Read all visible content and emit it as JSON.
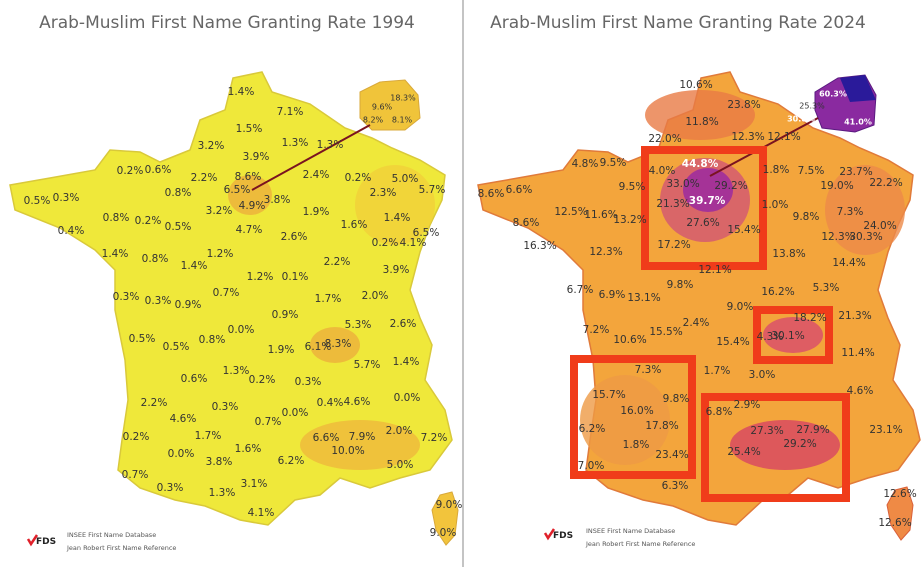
{
  "panels": [
    {
      "title": "Arab-Muslim First Name Granting Rate 1994",
      "labels": [
        "1.4%",
        "7.1%",
        "18.3%",
        "9.6%",
        "8.2%",
        "8.1%",
        "1.5%",
        "3.2%",
        "1.3%",
        "1.3%",
        "3.9%",
        "0.2%",
        "0.6%",
        "2.2%",
        "8.6%",
        "2.4%",
        "0.2%",
        "5.0%",
        "0.8%",
        "6.5%",
        "2.3%",
        "5.7%",
        "0.5%",
        "0.3%",
        "4.9%",
        "3.8%",
        "3.2%",
        "1.9%",
        "0.8%",
        "0.2%",
        "0.5%",
        "1.4%",
        "0.4%",
        "4.7%",
        "2.6%",
        "1.6%",
        "6.5%",
        "0.2%",
        "4.1%",
        "1.4%",
        "0.8%",
        "1.2%",
        "2.2%",
        "1.4%",
        "1.2%",
        "0.1%",
        "3.9%",
        "0.3%",
        "0.3%",
        "0.9%",
        "0.7%",
        "1.7%",
        "2.0%",
        "0.0%",
        "0.9%",
        "5.3%",
        "2.6%",
        "0.5%",
        "0.5%",
        "0.8%",
        "1.9%",
        "6.1%",
        "8.3%",
        "5.7%",
        "1.4%",
        "1.3%",
        "0.6%",
        "0.2%",
        "0.3%",
        "2.2%",
        "0.3%",
        "0.4%",
        "4.6%",
        "0.0%",
        "4.6%",
        "0.7%",
        "0.0%",
        "0.2%",
        "1.7%",
        "1.6%",
        "6.6%",
        "7.9%",
        "2.0%",
        "7.2%",
        "0.0%",
        "10.0%",
        "6.2%",
        "3.8%",
        "5.0%",
        "0.7%",
        "0.3%",
        "1.3%",
        "3.1%",
        "4.1%",
        "9.0%",
        "9.0%"
      ],
      "logo": "FDS",
      "source": [
        "INSEE First Name Database",
        "Jean Robert First Name Reference"
      ]
    },
    {
      "title": "Arab-Muslim First Name Granting Rate 2024",
      "labels": [
        "10.6%",
        "23.8%",
        "60.3%",
        "25.3%",
        "30.8%",
        "41.0%",
        "11.8%",
        "12.3%",
        "12.1%",
        "22.0%",
        "4.8%",
        "9.5%",
        "44.8%",
        "4.0%",
        "1.8%",
        "7.5%",
        "23.7%",
        "33.0%",
        "29.2%",
        "9.5%",
        "19.0%",
        "22.2%",
        "8.6%",
        "6.6%",
        "39.7%",
        "21.3%",
        "1.0%",
        "12.5%",
        "11.6%",
        "13.2%",
        "9.8%",
        "7.3%",
        "8.6%",
        "27.6%",
        "15.4%",
        "24.0%",
        "12.3%",
        "30.3%",
        "16.3%",
        "12.3%",
        "17.2%",
        "13.8%",
        "12.1%",
        "14.4%",
        "6.7%",
        "6.9%",
        "13.1%",
        "9.8%",
        "16.2%",
        "5.3%",
        "9.0%",
        "18.2%",
        "21.3%",
        "7.2%",
        "15.5%",
        "2.4%",
        "10.6%",
        "15.4%",
        "4.3%",
        "30.1%",
        "11.4%",
        "7.3%",
        "1.7%",
        "3.0%",
        "4.6%",
        "15.7%",
        "9.8%",
        "16.0%",
        "2.9%",
        "6.8%",
        "6.2%",
        "17.8%",
        "27.3%",
        "27.9%",
        "23.1%",
        "1.8%",
        "29.2%",
        "23.4%",
        "25.4%",
        "7.0%",
        "6.3%",
        "12.6%",
        "12.6%"
      ],
      "logo": "FDS",
      "source": [
        "INSEE First Name Database",
        "Jean Robert First Name Reference"
      ]
    }
  ]
}
